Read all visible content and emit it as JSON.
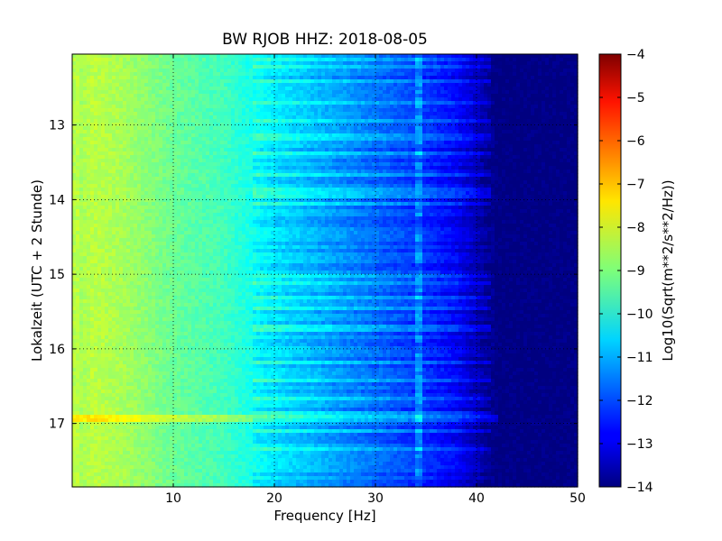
{
  "chart_data": {
    "type": "heatmap",
    "title": "BW RJOB HHZ: 2018-08-05",
    "xlabel": "Frequency [Hz]",
    "ylabel": "Lokalzeit (UTC + 2 Stunde)",
    "colorbar_label": "Log10(Sqrt(m**2/s**2/Hz))",
    "xlim": [
      0,
      50
    ],
    "ylim": [
      12.05,
      17.85
    ],
    "x_ticks": [
      10,
      20,
      30,
      40,
      50
    ],
    "x_tick_labels": [
      "10",
      "20",
      "30",
      "40",
      "50"
    ],
    "y_ticks": [
      13,
      14,
      15,
      16,
      17
    ],
    "y_tick_labels": [
      "13",
      "14",
      "15",
      "16",
      "17"
    ],
    "y_inverted": true,
    "colorbar_range": [
      -14,
      -4
    ],
    "colorbar_ticks": [
      -4,
      -5,
      -6,
      -7,
      -8,
      -9,
      -10,
      -11,
      -12,
      -13,
      -14
    ],
    "colorbar_tick_labels": [
      "−4",
      "−5",
      "−6",
      "−7",
      "−8",
      "−9",
      "−10",
      "−11",
      "−12",
      "−13",
      "−14"
    ],
    "colormap": "jet",
    "grid": true,
    "spectral_profile": {
      "frequency_hz": [
        0,
        2,
        5,
        10,
        15,
        20,
        25,
        30,
        35,
        38,
        40,
        42,
        50
      ],
      "log10_amplitude": [
        -8.8,
        -8.4,
        -8.6,
        -9.2,
        -9.6,
        -10.4,
        -11.0,
        -11.6,
        -12.2,
        -12.7,
        -13.3,
        -14.0,
        -14.0
      ]
    },
    "persistent_line_hz": [
      34.3
    ],
    "bright_band_time": 16.93
  }
}
